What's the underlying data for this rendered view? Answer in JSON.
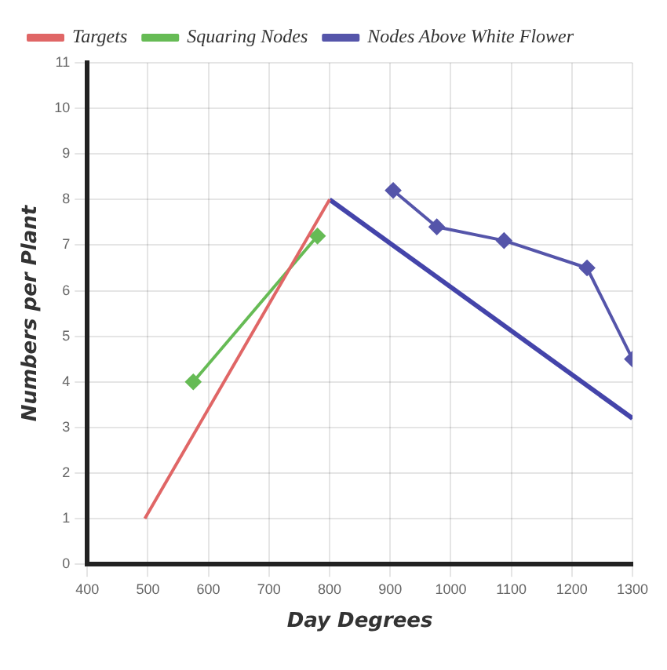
{
  "chart_data": {
    "type": "line",
    "xlabel": "Day Degrees",
    "ylabel": "Numbers per Plant",
    "xlim": [
      400,
      1300
    ],
    "xticks": [
      400,
      500,
      600,
      700,
      800,
      900,
      1000,
      1100,
      1200,
      1300
    ],
    "ylim": [
      0,
      11
    ],
    "yticks": [
      0,
      1,
      2,
      3,
      4,
      5,
      6,
      7,
      8,
      9,
      10,
      11
    ],
    "grid": true,
    "legend": "top left",
    "series": [
      {
        "name": "Targets",
        "color": "#e06666",
        "x": [
          495,
          800
        ],
        "values": [
          1,
          8
        ],
        "marker": "none"
      },
      {
        "name": "Squaring Nodes",
        "color": "#66bb55",
        "x": [
          575,
          780
        ],
        "values": [
          4,
          7.2
        ],
        "marker": "diamond"
      },
      {
        "name": "Nodes Above White Flower",
        "color": "#5555aa",
        "x": [
          905,
          977,
          1088,
          1225,
          1300
        ],
        "values": [
          8.2,
          7.4,
          7.1,
          6.5,
          4.5
        ],
        "marker": "diamond"
      },
      {
        "color": "#4444aa",
        "x": [
          800,
          1300
        ],
        "values": [
          8,
          3.2
        ],
        "marker": "none"
      }
    ]
  }
}
